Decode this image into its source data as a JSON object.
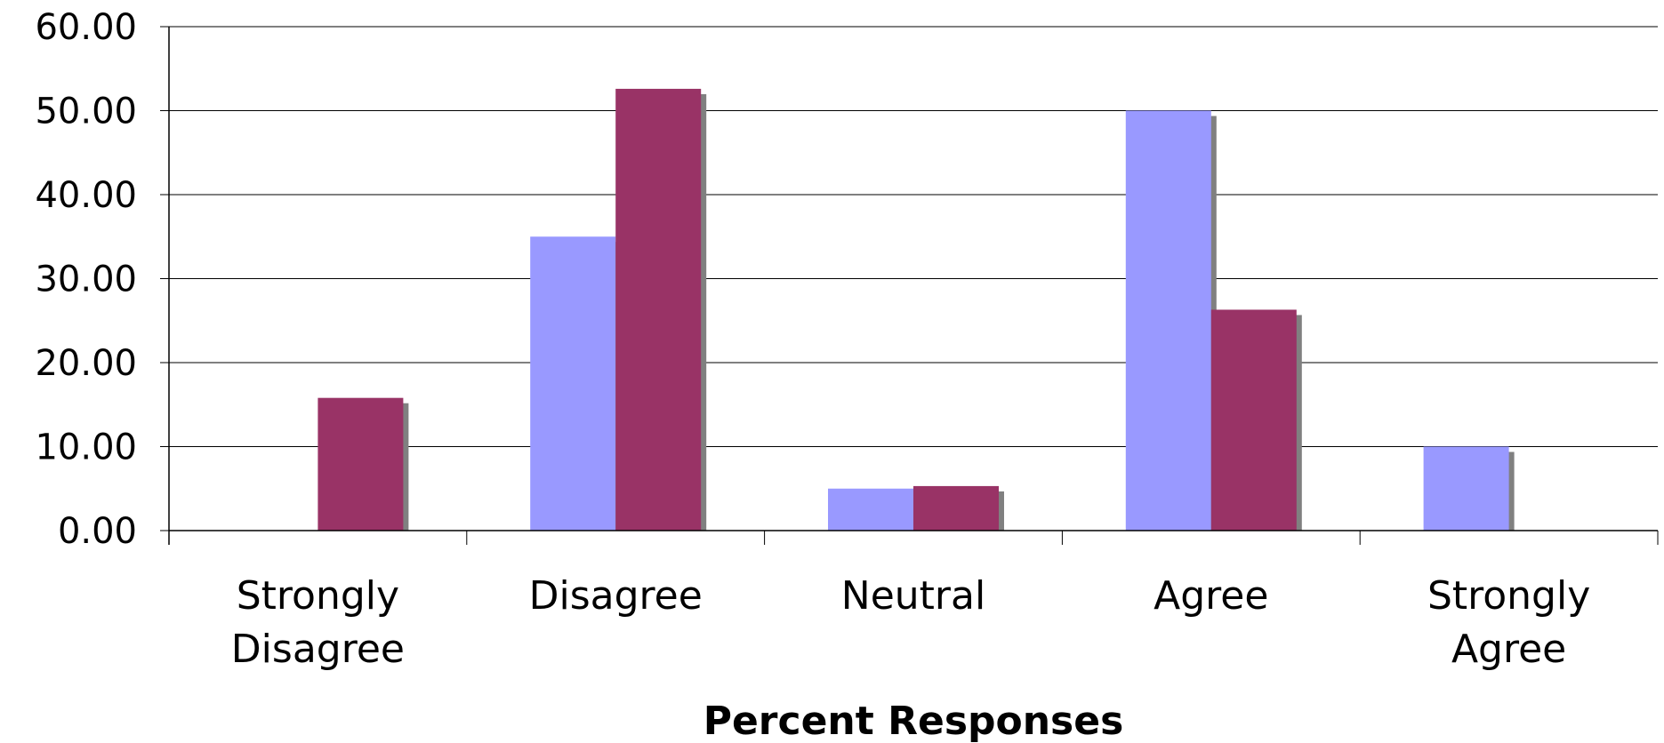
{
  "chart_data": {
    "type": "bar",
    "title": "",
    "xlabel": "Percent Responses",
    "ylabel": "",
    "categories": [
      "Strongly Disagree",
      "Disagree",
      "Neutral",
      "Agree",
      "Strongly Agree"
    ],
    "category_lines": [
      [
        "Strongly",
        "Disagree"
      ],
      [
        "Disagree"
      ],
      [
        "Neutral"
      ],
      [
        "Agree"
      ],
      [
        "Strongly",
        "Agree"
      ]
    ],
    "series": [
      {
        "values": [
          0,
          35.0,
          5.0,
          50.0,
          10.0
        ],
        "color": "#9999ff"
      },
      {
        "values": [
          15.8,
          52.6,
          5.3,
          26.3,
          0
        ],
        "color": "#993366"
      }
    ],
    "ylim": [
      0,
      60
    ],
    "yticks": [
      0,
      10,
      20,
      30,
      40,
      50,
      60
    ],
    "ytick_labels": [
      "0.00",
      "10.00",
      "20.00",
      "30.00",
      "40.00",
      "50.00",
      "60.00"
    ],
    "grid": true,
    "legend": "none",
    "shadow_color": "#808080"
  }
}
